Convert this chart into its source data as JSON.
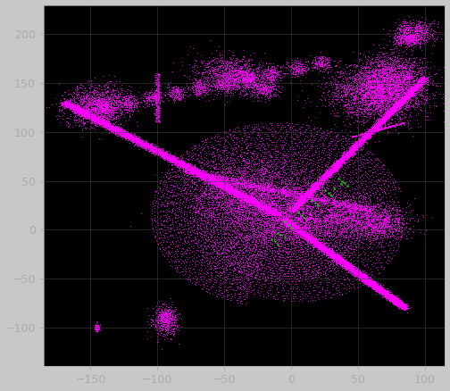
{
  "background_color": "#000000",
  "figure_background": "#c8c8c8",
  "magenta_color": "#ff00ff",
  "green_color": "#00cc00",
  "tick_color": "#aaaaaa",
  "grid_color": "#404040",
  "xlim": [
    -185,
    115
  ],
  "ylim": [
    -140,
    230
  ],
  "xticks": [
    -150,
    -100,
    -50,
    0,
    50,
    100
  ],
  "yticks": [
    -100,
    -50,
    0,
    50,
    100,
    150,
    200
  ],
  "figsize": [
    5.04,
    4.38
  ],
  "dpi": 100,
  "point_size": 0.4,
  "green_point_size": 3.5,
  "seed": 42
}
